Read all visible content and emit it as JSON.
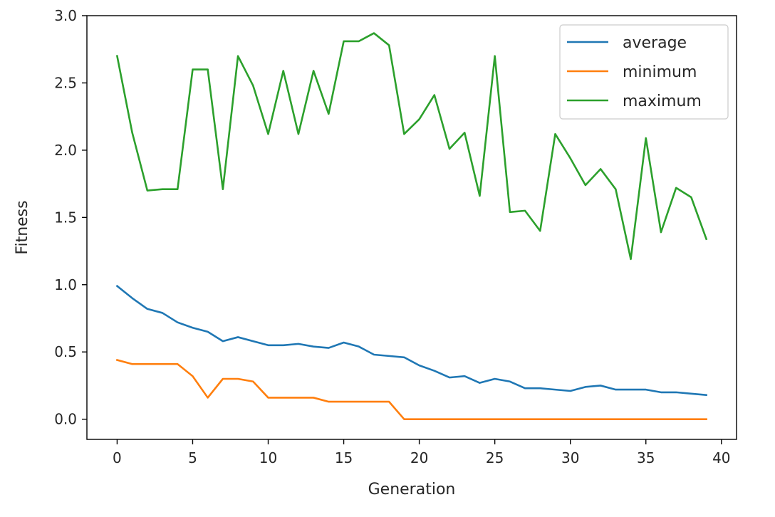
{
  "chart_data": {
    "type": "line",
    "title": "",
    "xlabel": "Generation",
    "ylabel": "Fitness",
    "xlim": [
      -2,
      41
    ],
    "ylim": [
      -0.15,
      3.0
    ],
    "xticks": [
      0,
      5,
      10,
      15,
      20,
      25,
      30,
      35,
      40
    ],
    "yticks": [
      0.0,
      0.5,
      1.0,
      1.5,
      2.0,
      2.5,
      3.0
    ],
    "xtick_labels": [
      "0",
      "5",
      "10",
      "15",
      "20",
      "25",
      "30",
      "35",
      "40"
    ],
    "ytick_labels": [
      "0.0",
      "0.5",
      "1.0",
      "1.5",
      "2.0",
      "2.5",
      "3.0"
    ],
    "grid": false,
    "legend_position": "top-right",
    "x": [
      0,
      1,
      2,
      3,
      4,
      5,
      6,
      7,
      8,
      9,
      10,
      11,
      12,
      13,
      14,
      15,
      16,
      17,
      18,
      19,
      20,
      21,
      22,
      23,
      24,
      25,
      26,
      27,
      28,
      29,
      30,
      31,
      32,
      33,
      34,
      35,
      36,
      37,
      38,
      39
    ],
    "series": [
      {
        "name": "average",
        "color": "#1f77b4",
        "values": [
          0.99,
          0.9,
          0.82,
          0.79,
          0.72,
          0.68,
          0.65,
          0.58,
          0.61,
          0.58,
          0.55,
          0.55,
          0.56,
          0.54,
          0.53,
          0.57,
          0.54,
          0.48,
          0.47,
          0.46,
          0.4,
          0.36,
          0.31,
          0.32,
          0.27,
          0.3,
          0.28,
          0.23,
          0.23,
          0.22,
          0.21,
          0.24,
          0.25,
          0.22,
          0.22,
          0.22,
          0.2,
          0.2,
          0.19,
          0.18
        ]
      },
      {
        "name": "minimum",
        "color": "#ff7f0e",
        "values": [
          0.44,
          0.41,
          0.41,
          0.41,
          0.41,
          0.32,
          0.16,
          0.3,
          0.3,
          0.28,
          0.16,
          0.16,
          0.16,
          0.16,
          0.13,
          0.13,
          0.13,
          0.13,
          0.13,
          0.0,
          0.0,
          0.0,
          0.0,
          0.0,
          0.0,
          0.0,
          0.0,
          0.0,
          0.0,
          0.0,
          0.0,
          0.0,
          0.0,
          0.0,
          0.0,
          0.0,
          0.0,
          0.0,
          0.0,
          0.0
        ]
      },
      {
        "name": "maximum",
        "color": "#2ca02c",
        "values": [
          2.7,
          2.13,
          1.7,
          1.71,
          1.71,
          2.6,
          2.6,
          1.71,
          2.7,
          2.48,
          2.12,
          2.59,
          2.12,
          2.59,
          2.27,
          2.81,
          2.81,
          2.87,
          2.78,
          2.12,
          2.23,
          2.41,
          2.01,
          2.13,
          1.66,
          2.7,
          1.54,
          1.55,
          1.4,
          2.12,
          1.94,
          1.74,
          1.86,
          1.71,
          1.19,
          2.09,
          1.39,
          1.72,
          1.65,
          1.34
        ]
      }
    ]
  }
}
